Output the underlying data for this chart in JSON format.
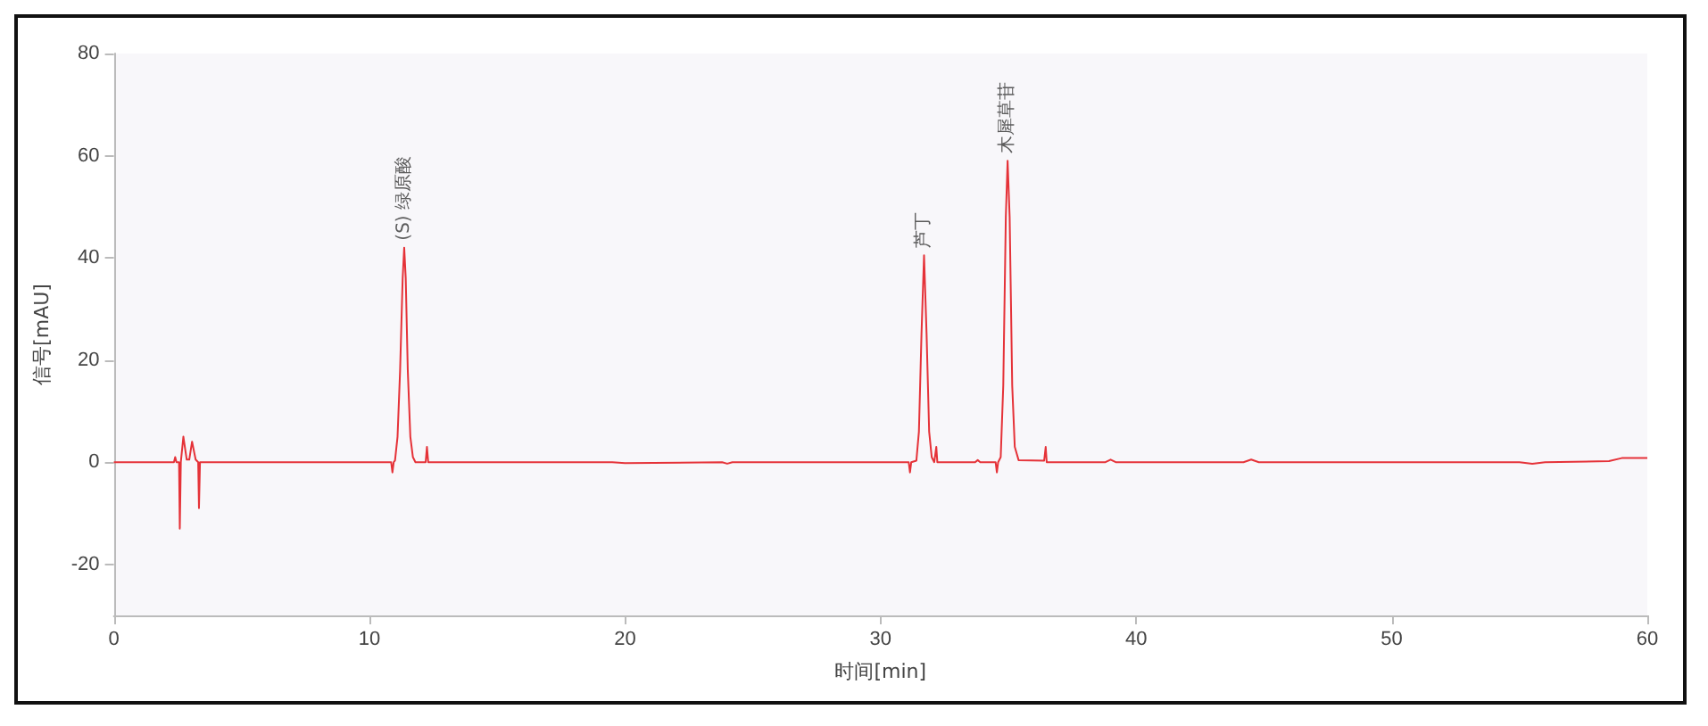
{
  "chart_data": {
    "type": "line",
    "xlabel": "时间[min]",
    "ylabel": "信号[mAU]",
    "xlim": [
      0,
      60
    ],
    "xticks": [
      0,
      10,
      20,
      30,
      40,
      50,
      60
    ],
    "ylim": [
      -30,
      80
    ],
    "yticks": [
      -20,
      0,
      20,
      40,
      60,
      80
    ],
    "grid": false,
    "marker": "none",
    "line_style": "solid",
    "series": [
      {
        "color": "#e53238",
        "x": [
          0,
          2.35,
          2.4,
          2.45,
          2.55,
          2.58,
          2.62,
          2.72,
          2.85,
          2.95,
          3.06,
          3.2,
          3.3,
          3.33,
          3.37,
          3.45,
          10.85,
          10.9,
          10.95,
          11.0,
          11.1,
          11.2,
          11.3,
          11.36,
          11.42,
          11.5,
          11.6,
          11.7,
          11.8,
          12.2,
          12.25,
          12.3,
          19.5,
          20,
          23.8,
          24,
          24.2,
          31.1,
          31.15,
          31.2,
          31.4,
          31.5,
          31.6,
          31.7,
          31.8,
          31.9,
          32.0,
          32.1,
          32.18,
          32.22,
          33.7,
          33.8,
          33.9,
          34.5,
          34.55,
          34.6,
          34.7,
          34.8,
          34.9,
          34.97,
          35.05,
          35.15,
          35.25,
          35.4,
          36.4,
          36.46,
          36.5,
          38.8,
          39,
          39.2,
          44.2,
          44.5,
          44.8,
          55,
          55.5,
          56,
          58.5,
          59,
          60
        ],
        "values": [
          0,
          0,
          1,
          0,
          0,
          -13,
          0,
          5,
          0.5,
          0.5,
          4,
          0.5,
          0,
          -9,
          0,
          0,
          0,
          -2,
          0,
          0.3,
          5,
          18,
          36,
          42,
          36,
          18,
          5,
          1,
          0,
          0,
          3,
          0,
          0,
          -0.2,
          0,
          -0.3,
          0,
          0,
          -2,
          0,
          0.3,
          6,
          25,
          40.5,
          25,
          6,
          1,
          0,
          3,
          0,
          0,
          0.4,
          0,
          0,
          -2,
          0,
          1,
          15,
          48,
          59,
          48,
          15,
          3,
          0.4,
          0.3,
          3,
          0,
          0,
          0.5,
          0,
          0,
          0.5,
          0,
          0,
          -0.3,
          0,
          0.2,
          0.8,
          0.8
        ]
      }
    ],
    "annotations": [
      {
        "text": "(S) 绿原酸",
        "x": 11.36,
        "y": 42
      },
      {
        "text": "芦丁",
        "x": 31.7,
        "y": 40.5
      },
      {
        "text": "木犀草苷",
        "x": 34.97,
        "y": 59
      }
    ]
  }
}
